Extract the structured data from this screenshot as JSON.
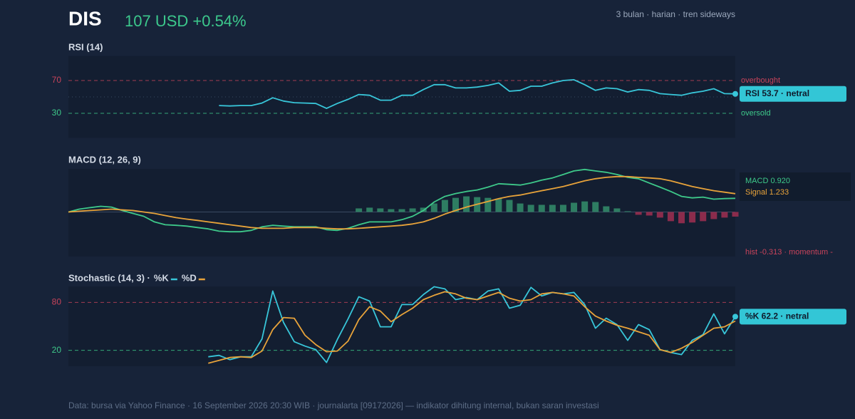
{
  "header": {
    "ticker": "DIS",
    "price": "107 USD +0.54%",
    "meta": "3 bulan · harian · tren sideways"
  },
  "footer": "Data: bursa via Yahoo Finance · 16 September 2026 20:30 WIB · journalarta [09172026] — indikator dihitung internal, bukan saran investasi",
  "chart_data": [
    {
      "type": "line",
      "title": "RSI (14)",
      "ylim": [
        0,
        100
      ],
      "yticks": [
        30,
        70
      ],
      "midline": 50,
      "reference_lines": [
        {
          "value": 70,
          "label": "overbought",
          "color": "#c8435a"
        },
        {
          "value": 30,
          "label": "oversold",
          "color": "#3ec98a"
        }
      ],
      "badge": "RSI 53.7 · netral",
      "series": [
        {
          "color": "#38c6d9",
          "values": [
            null,
            null,
            null,
            null,
            null,
            null,
            null,
            null,
            null,
            null,
            null,
            null,
            null,
            null,
            39.5,
            39,
            39.5,
            39.5,
            42.5,
            49,
            45,
            43,
            42.5,
            42,
            36,
            42,
            47,
            53,
            52,
            46,
            46,
            52,
            52,
            59,
            65,
            65,
            61,
            61,
            62,
            64,
            67,
            57,
            58,
            63,
            63,
            67,
            70,
            71,
            65,
            58,
            61,
            60,
            56,
            59,
            58,
            54,
            53,
            52,
            55,
            57,
            60,
            54,
            53.7
          ]
        }
      ]
    },
    {
      "type": "line",
      "title": "MACD (12, 26, 9)",
      "ylim": [
        -3,
        2.9
      ],
      "series": [
        {
          "color": "#3ec98a",
          "label": "MACD 0.920",
          "values": [
            0,
            0.19,
            0.29,
            0.38,
            0.33,
            0.1,
            -0.1,
            -0.29,
            -0.67,
            -0.86,
            -0.9,
            -0.95,
            -1.05,
            -1.14,
            -1.29,
            -1.33,
            -1.33,
            -1.24,
            -1.0,
            -0.9,
            -0.95,
            -1.0,
            -1.0,
            -1.0,
            -1.19,
            -1.24,
            -1.1,
            -0.86,
            -0.67,
            -0.67,
            -0.67,
            -0.52,
            -0.29,
            0.1,
            0.67,
            1.05,
            1.24,
            1.38,
            1.48,
            1.67,
            1.9,
            1.86,
            1.81,
            1.95,
            2.14,
            2.29,
            2.52,
            2.76,
            2.86,
            2.76,
            2.67,
            2.52,
            2.33,
            2.24,
            1.95,
            1.67,
            1.38,
            1.05,
            0.95,
            1.0,
            0.86,
            0.9,
            0.92
          ]
        },
        {
          "color": "#e8a33a",
          "label": "Signal 1.233",
          "values": [
            0,
            0.05,
            0.1,
            0.14,
            0.19,
            0.14,
            0.1,
            0,
            -0.1,
            -0.24,
            -0.38,
            -0.48,
            -0.57,
            -0.67,
            -0.76,
            -0.86,
            -0.95,
            -1.05,
            -1.1,
            -1.1,
            -1.1,
            -1.05,
            -1.05,
            -1.05,
            -1.1,
            -1.14,
            -1.14,
            -1.1,
            -1.05,
            -1.0,
            -0.95,
            -0.9,
            -0.81,
            -0.67,
            -0.43,
            -0.14,
            0.1,
            0.33,
            0.52,
            0.71,
            0.9,
            1.05,
            1.14,
            1.29,
            1.43,
            1.57,
            1.71,
            1.9,
            2.1,
            2.24,
            2.33,
            2.38,
            2.38,
            2.33,
            2.29,
            2.24,
            2.1,
            1.9,
            1.71,
            1.57,
            1.43,
            1.33,
            1.233
          ]
        },
        {
          "kind": "bar",
          "color": "#2e7d62",
          "negative_color": "#8b2c4c",
          "label_color": "#c8435a",
          "label": "hist -0.313 · momentum -",
          "values": [
            null,
            null,
            null,
            null,
            null,
            null,
            null,
            null,
            null,
            null,
            null,
            null,
            null,
            null,
            null,
            null,
            null,
            null,
            null,
            null,
            null,
            null,
            null,
            null,
            null,
            null,
            null,
            0.24,
            0.29,
            0.24,
            0.19,
            0.19,
            0.24,
            0.29,
            0.57,
            0.81,
            0.95,
            1.05,
            1.0,
            0.95,
            0.9,
            0.81,
            0.57,
            0.48,
            0.48,
            0.48,
            0.48,
            0.62,
            0.71,
            0.67,
            0.38,
            0.24,
            0.05,
            -0.19,
            -0.24,
            -0.38,
            -0.62,
            -0.76,
            -0.71,
            -0.62,
            -0.48,
            -0.38,
            -0.313
          ]
        }
      ]
    },
    {
      "type": "line",
      "title": "Stochastic (14, 3) ·",
      "ylim": [
        0,
        100
      ],
      "yticks": [
        20,
        80
      ],
      "reference_lines": [
        {
          "value": 80,
          "color": "#c8435a"
        },
        {
          "value": 20,
          "color": "#3ec98a"
        }
      ],
      "badge": "%K 62.2 · netral",
      "series": [
        {
          "name": "%K",
          "color": "#38c6d9",
          "values": [
            null,
            null,
            null,
            null,
            null,
            null,
            null,
            null,
            null,
            null,
            null,
            null,
            null,
            11.9,
            13.7,
            8.3,
            11.9,
            11.9,
            34.3,
            94.3,
            54.9,
            30.7,
            25.3,
            20.9,
            4.7,
            33.4,
            59.4,
            87.1,
            81.7,
            49.5,
            49.5,
            77.3,
            77.3,
            89.8,
            99.6,
            97,
            83.5,
            86.2,
            83.5,
            94.3,
            97,
            72.8,
            76.4,
            98.8,
            88.1,
            92.5,
            90.7,
            92.5,
            77.3,
            47.7,
            60.3,
            52.2,
            32.5,
            52.2,
            45.9,
            20.9,
            17.3,
            14.6,
            32.5,
            39.7,
            65.7,
            40.6,
            62.2
          ]
        },
        {
          "name": "%D",
          "color": "#e8a33a",
          "values": [
            null,
            null,
            null,
            null,
            null,
            null,
            null,
            null,
            null,
            null,
            null,
            null,
            null,
            3.8,
            7.4,
            11,
            11.9,
            11,
            19.1,
            45.9,
            61.1,
            60.2,
            38.8,
            27.1,
            18.2,
            19.1,
            31.6,
            58.5,
            74.6,
            69.2,
            55.8,
            64.7,
            72.8,
            83.5,
            88.9,
            93.4,
            90.7,
            85.3,
            83.5,
            88,
            92.5,
            85.3,
            81.7,
            83.5,
            90.7,
            92.5,
            90.7,
            88,
            74.6,
            62.9,
            56.7,
            51.3,
            47.7,
            43.2,
            38.8,
            20.9,
            17.3,
            22.6,
            29.8,
            38.8,
            47.7,
            49.5,
            56.7
          ]
        }
      ]
    }
  ]
}
